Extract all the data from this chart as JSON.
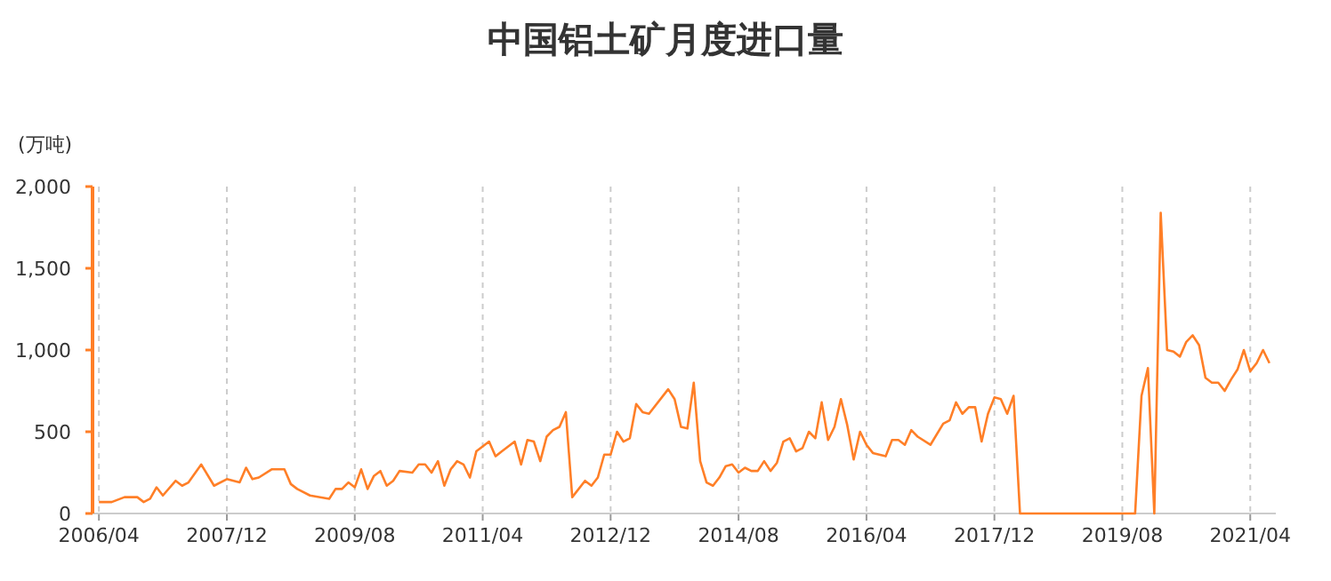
{
  "chart_data": {
    "type": "line",
    "title": "中国铝土矿月度进口量",
    "ylabel": "(万吨)",
    "color": "#ff7f27",
    "grid": "x",
    "marker": "none",
    "line_style": "solid",
    "xlim": [
      "2006-03",
      "2021-08"
    ],
    "ylim": [
      0,
      2000
    ],
    "yticks": [
      {
        "value": 0,
        "label": "0"
      },
      {
        "value": 500,
        "label": "500"
      },
      {
        "value": 1000,
        "label": "1,000"
      },
      {
        "value": 1500,
        "label": "1,500"
      },
      {
        "value": 2000,
        "label": "2,000"
      }
    ],
    "xticks": [
      {
        "value": "2006-04",
        "label": "2006/04"
      },
      {
        "value": "2007-12",
        "label": "2007/12"
      },
      {
        "value": "2009-08",
        "label": "2009/08"
      },
      {
        "value": "2011-04",
        "label": "2011/04"
      },
      {
        "value": "2012-12",
        "label": "2012/12"
      },
      {
        "value": "2014-08",
        "label": "2014/08"
      },
      {
        "value": "2016-04",
        "label": "2016/04"
      },
      {
        "value": "2017-12",
        "label": "2017/12"
      },
      {
        "value": "2019-08",
        "label": "2019/08"
      },
      {
        "value": "2021-04",
        "label": "2021/04"
      }
    ],
    "x": [
      "2006-04",
      "2006-06",
      "2006-08",
      "2006-10",
      "2006-11",
      "2006-12",
      "2007-01",
      "2007-02",
      "2007-04",
      "2007-05",
      "2007-06",
      "2007-08",
      "2007-10",
      "2007-12",
      "2008-02",
      "2008-03",
      "2008-04",
      "2008-05",
      "2008-07",
      "2008-09",
      "2008-10",
      "2008-11",
      "2009-01",
      "2009-04",
      "2009-05",
      "2009-06",
      "2009-07",
      "2009-08",
      "2009-09",
      "2009-10",
      "2009-11",
      "2009-12",
      "2010-01",
      "2010-02",
      "2010-03",
      "2010-05",
      "2010-06",
      "2010-07",
      "2010-08",
      "2010-09",
      "2010-10",
      "2010-11",
      "2010-12",
      "2011-01",
      "2011-02",
      "2011-03",
      "2011-05",
      "2011-06",
      "2011-07",
      "2011-09",
      "2011-10",
      "2011-11",
      "2011-12",
      "2012-01",
      "2012-02",
      "2012-03",
      "2012-04",
      "2012-05",
      "2012-06",
      "2012-08",
      "2012-09",
      "2012-10",
      "2012-11",
      "2012-12",
      "2013-01",
      "2013-02",
      "2013-03",
      "2013-04",
      "2013-05",
      "2013-06",
      "2013-09",
      "2013-10",
      "2013-11",
      "2013-12",
      "2014-01",
      "2014-02",
      "2014-03",
      "2014-04",
      "2014-05",
      "2014-06",
      "2014-07",
      "2014-08",
      "2014-09",
      "2014-10",
      "2014-11",
      "2014-12",
      "2015-01",
      "2015-02",
      "2015-03",
      "2015-04",
      "2015-05",
      "2015-06",
      "2015-07",
      "2015-08",
      "2015-09",
      "2015-10",
      "2015-11",
      "2015-12",
      "2016-01",
      "2016-02",
      "2016-03",
      "2016-04",
      "2016-05",
      "2016-07",
      "2016-08",
      "2016-09",
      "2016-10",
      "2016-11",
      "2016-12",
      "2017-02",
      "2017-04",
      "2017-05",
      "2017-06",
      "2017-07",
      "2017-08",
      "2017-09",
      "2017-10",
      "2017-11",
      "2017-12",
      "2018-01",
      "2018-02",
      "2018-03",
      "2018-04",
      "2019-10",
      "2019-11",
      "2019-12",
      "2020-01",
      "2020-02",
      "2020-03",
      "2020-04",
      "2020-05",
      "2020-06",
      "2020-07",
      "2020-08",
      "2020-09",
      "2020-10",
      "2020-11",
      "2020-12",
      "2021-01",
      "2021-02",
      "2021-03",
      "2021-04",
      "2021-05",
      "2021-06",
      "2021-07"
    ],
    "values": [
      70,
      70,
      100,
      100,
      70,
      90,
      160,
      110,
      200,
      170,
      190,
      300,
      170,
      210,
      190,
      280,
      210,
      220,
      270,
      270,
      180,
      150,
      110,
      90,
      150,
      150,
      190,
      160,
      270,
      150,
      230,
      260,
      170,
      200,
      260,
      250,
      300,
      300,
      250,
      320,
      170,
      270,
      320,
      300,
      220,
      380,
      440,
      350,
      380,
      440,
      300,
      450,
      440,
      320,
      470,
      510,
      530,
      620,
      100,
      200,
      170,
      220,
      360,
      360,
      500,
      440,
      460,
      670,
      620,
      610,
      760,
      700,
      530,
      520,
      800,
      320,
      190,
      170,
      220,
      290,
      300,
      250,
      280,
      260,
      260,
      320,
      260,
      310,
      440,
      460,
      380,
      400,
      500,
      460,
      680,
      450,
      530,
      700,
      540,
      330,
      500,
      420,
      370,
      350,
      450,
      450,
      420,
      510,
      470,
      420,
      550,
      570,
      680,
      610,
      650,
      650,
      440,
      610,
      710,
      700,
      610,
      720,
      0,
      0,
      720,
      890,
      0,
      1840,
      1000,
      990,
      960,
      1050,
      1090,
      1030,
      830,
      800,
      800,
      750,
      820,
      880,
      1000,
      870,
      920,
      1000,
      920
    ]
  }
}
